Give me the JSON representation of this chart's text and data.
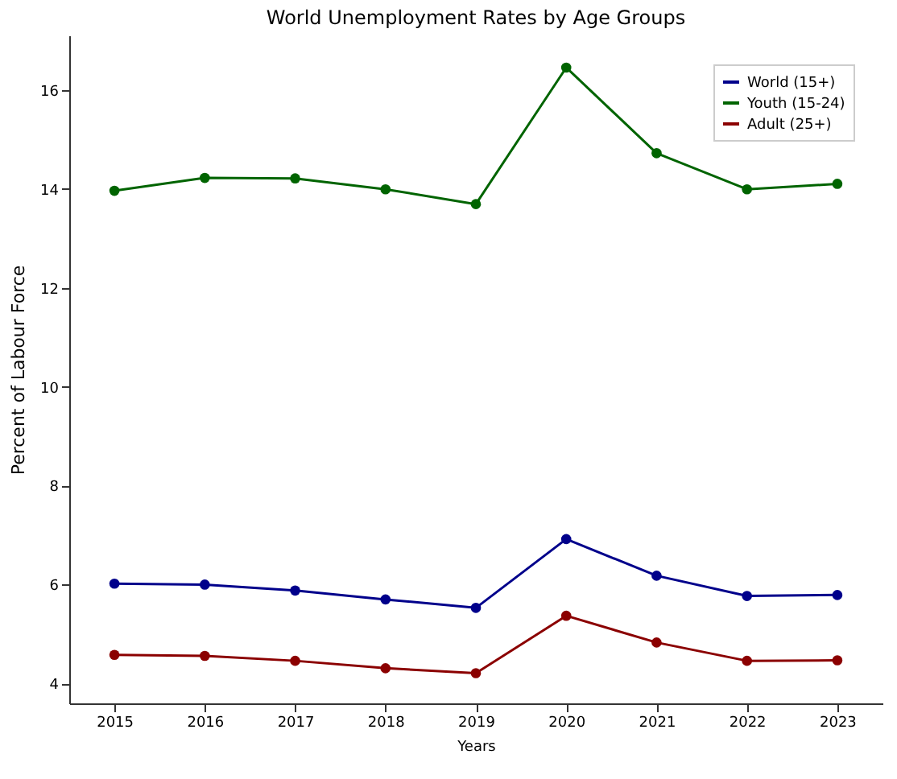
{
  "chart_data": {
    "type": "line",
    "title": "World Unemployment Rates by Age Groups",
    "xlabel": "Years",
    "ylabel": "Percent of Labour Force",
    "categories": [
      "2015",
      "2016",
      "2017",
      "2018",
      "2019",
      "2020",
      "2021",
      "2022",
      "2023"
    ],
    "series": [
      {
        "name": "World (15+)",
        "color": "#00008b",
        "values": [
          6.02,
          6.0,
          5.88,
          5.7,
          5.53,
          6.92,
          6.18,
          5.77,
          5.79
        ]
      },
      {
        "name": "Youth (15-24)",
        "color": "#006400",
        "values": [
          13.96,
          14.22,
          14.21,
          13.99,
          13.69,
          16.45,
          14.72,
          13.99,
          14.1
        ]
      },
      {
        "name": "Adult (25+)",
        "color": "#8b0000",
        "values": [
          4.58,
          4.56,
          4.46,
          4.31,
          4.21,
          5.37,
          4.83,
          4.46,
          4.47
        ]
      }
    ],
    "ylim": [
      3.6,
      17.1
    ],
    "yticks": [
      4,
      6,
      8,
      10,
      12,
      14,
      16
    ],
    "grid": false,
    "legend": "top right",
    "marker": "circle",
    "line_style": "solid"
  }
}
